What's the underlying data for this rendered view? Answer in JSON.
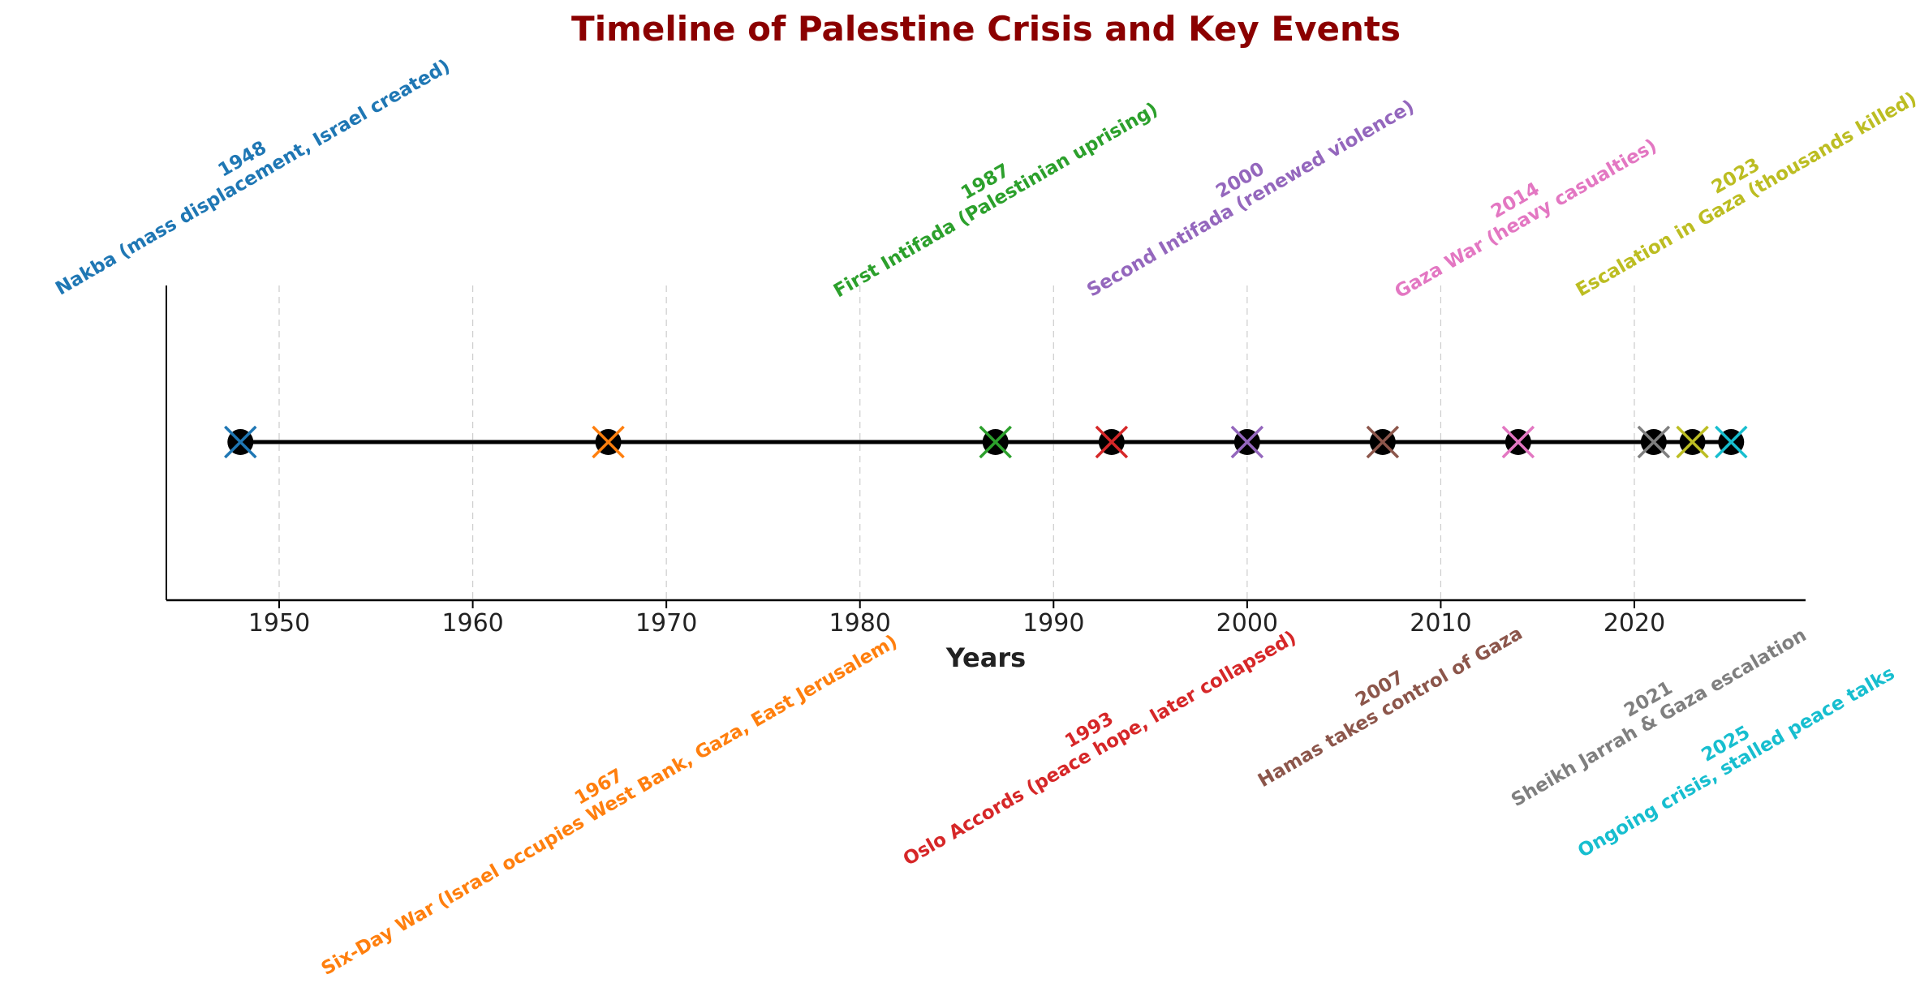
{
  "chart_data": {
    "type": "scatter",
    "title": "Timeline of Palestine Crisis and Key Events",
    "xlabel": "Years",
    "ylabel": "",
    "xlim": [
      1944,
      2029
    ],
    "xticks": [
      1950,
      1960,
      1970,
      1980,
      1990,
      2000,
      2010,
      2020
    ],
    "grid": "vertical dashed",
    "title_color": "#8b0000",
    "events": [
      {
        "year": 1948,
        "label": "Nakba (mass displacement, Israel created)",
        "color": "#1f77b4",
        "side": "above"
      },
      {
        "year": 1967,
        "label": "Six-Day War (Israel occupies West Bank, Gaza, East Jerusalem)",
        "color": "#ff7f0e",
        "side": "below"
      },
      {
        "year": 1987,
        "label": "First Intifada (Palestinian uprising)",
        "color": "#2ca02c",
        "side": "above"
      },
      {
        "year": 1993,
        "label": "Oslo Accords (peace hope, later collapsed)",
        "color": "#d62728",
        "side": "below"
      },
      {
        "year": 2000,
        "label": "Second Intifada (renewed violence)",
        "color": "#9467bd",
        "side": "above"
      },
      {
        "year": 2007,
        "label": "Hamas takes control of Gaza",
        "color": "#8c564b",
        "side": "below"
      },
      {
        "year": 2014,
        "label": "Gaza War (heavy casualties)",
        "color": "#e377c2",
        "side": "above"
      },
      {
        "year": 2021,
        "label": "Sheikh Jarrah & Gaza escalation",
        "color": "#7f7f7f",
        "side": "below"
      },
      {
        "year": 2023,
        "label": "Escalation in Gaza (thousands killed)",
        "color": "#bcbd22",
        "side": "above"
      },
      {
        "year": 2025,
        "label": "Ongoing crisis, stalled peace talks",
        "color": "#17becf",
        "side": "below"
      }
    ]
  }
}
